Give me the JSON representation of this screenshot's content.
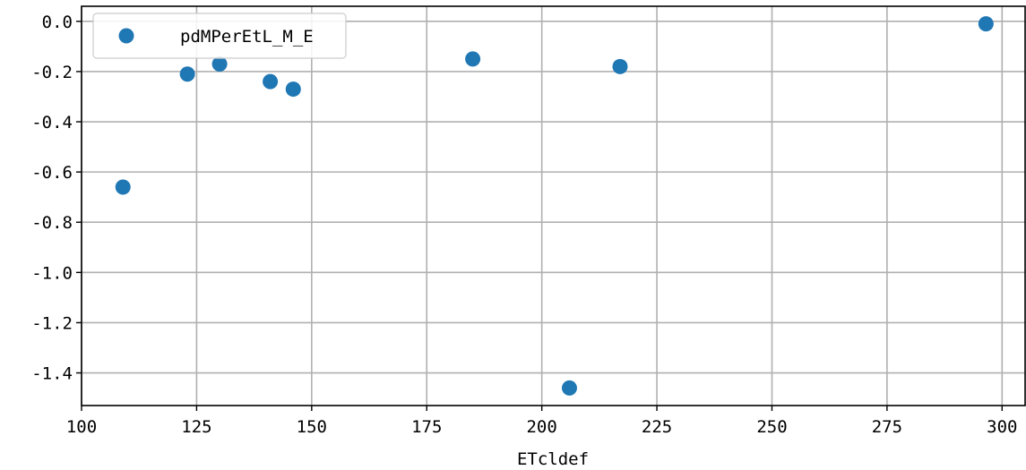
{
  "chart_data": {
    "type": "scatter",
    "title": "",
    "xlabel": "ETcldef",
    "ylabel": "",
    "xlim": [
      100,
      305
    ],
    "ylim": [
      -1.53,
      0.06
    ],
    "xticks": [
      100,
      125,
      150,
      175,
      200,
      225,
      250,
      275,
      300
    ],
    "yticks": [
      0.0,
      -0.2,
      -0.4,
      -0.6,
      -0.8,
      -1.0,
      -1.2,
      -1.4
    ],
    "xtick_labels": [
      "100",
      "125",
      "150",
      "175",
      "200",
      "225",
      "250",
      "275",
      "300"
    ],
    "ytick_labels": [
      "0.0",
      "-0.2",
      "-0.4",
      "-0.6",
      "-0.8",
      "-1.0",
      "-1.2",
      "-1.4"
    ],
    "grid": true,
    "legend_position": "top-left",
    "series": [
      {
        "name": "pdMPerEtL_M_E",
        "color": "#1f77b4",
        "marker": "circle",
        "x": [
          109,
          123,
          130,
          141,
          146,
          185,
          206,
          217,
          296.5
        ],
        "y": [
          -0.66,
          -0.21,
          -0.17,
          -0.24,
          -0.27,
          -0.15,
          -1.46,
          -0.18,
          -0.01
        ]
      }
    ]
  }
}
